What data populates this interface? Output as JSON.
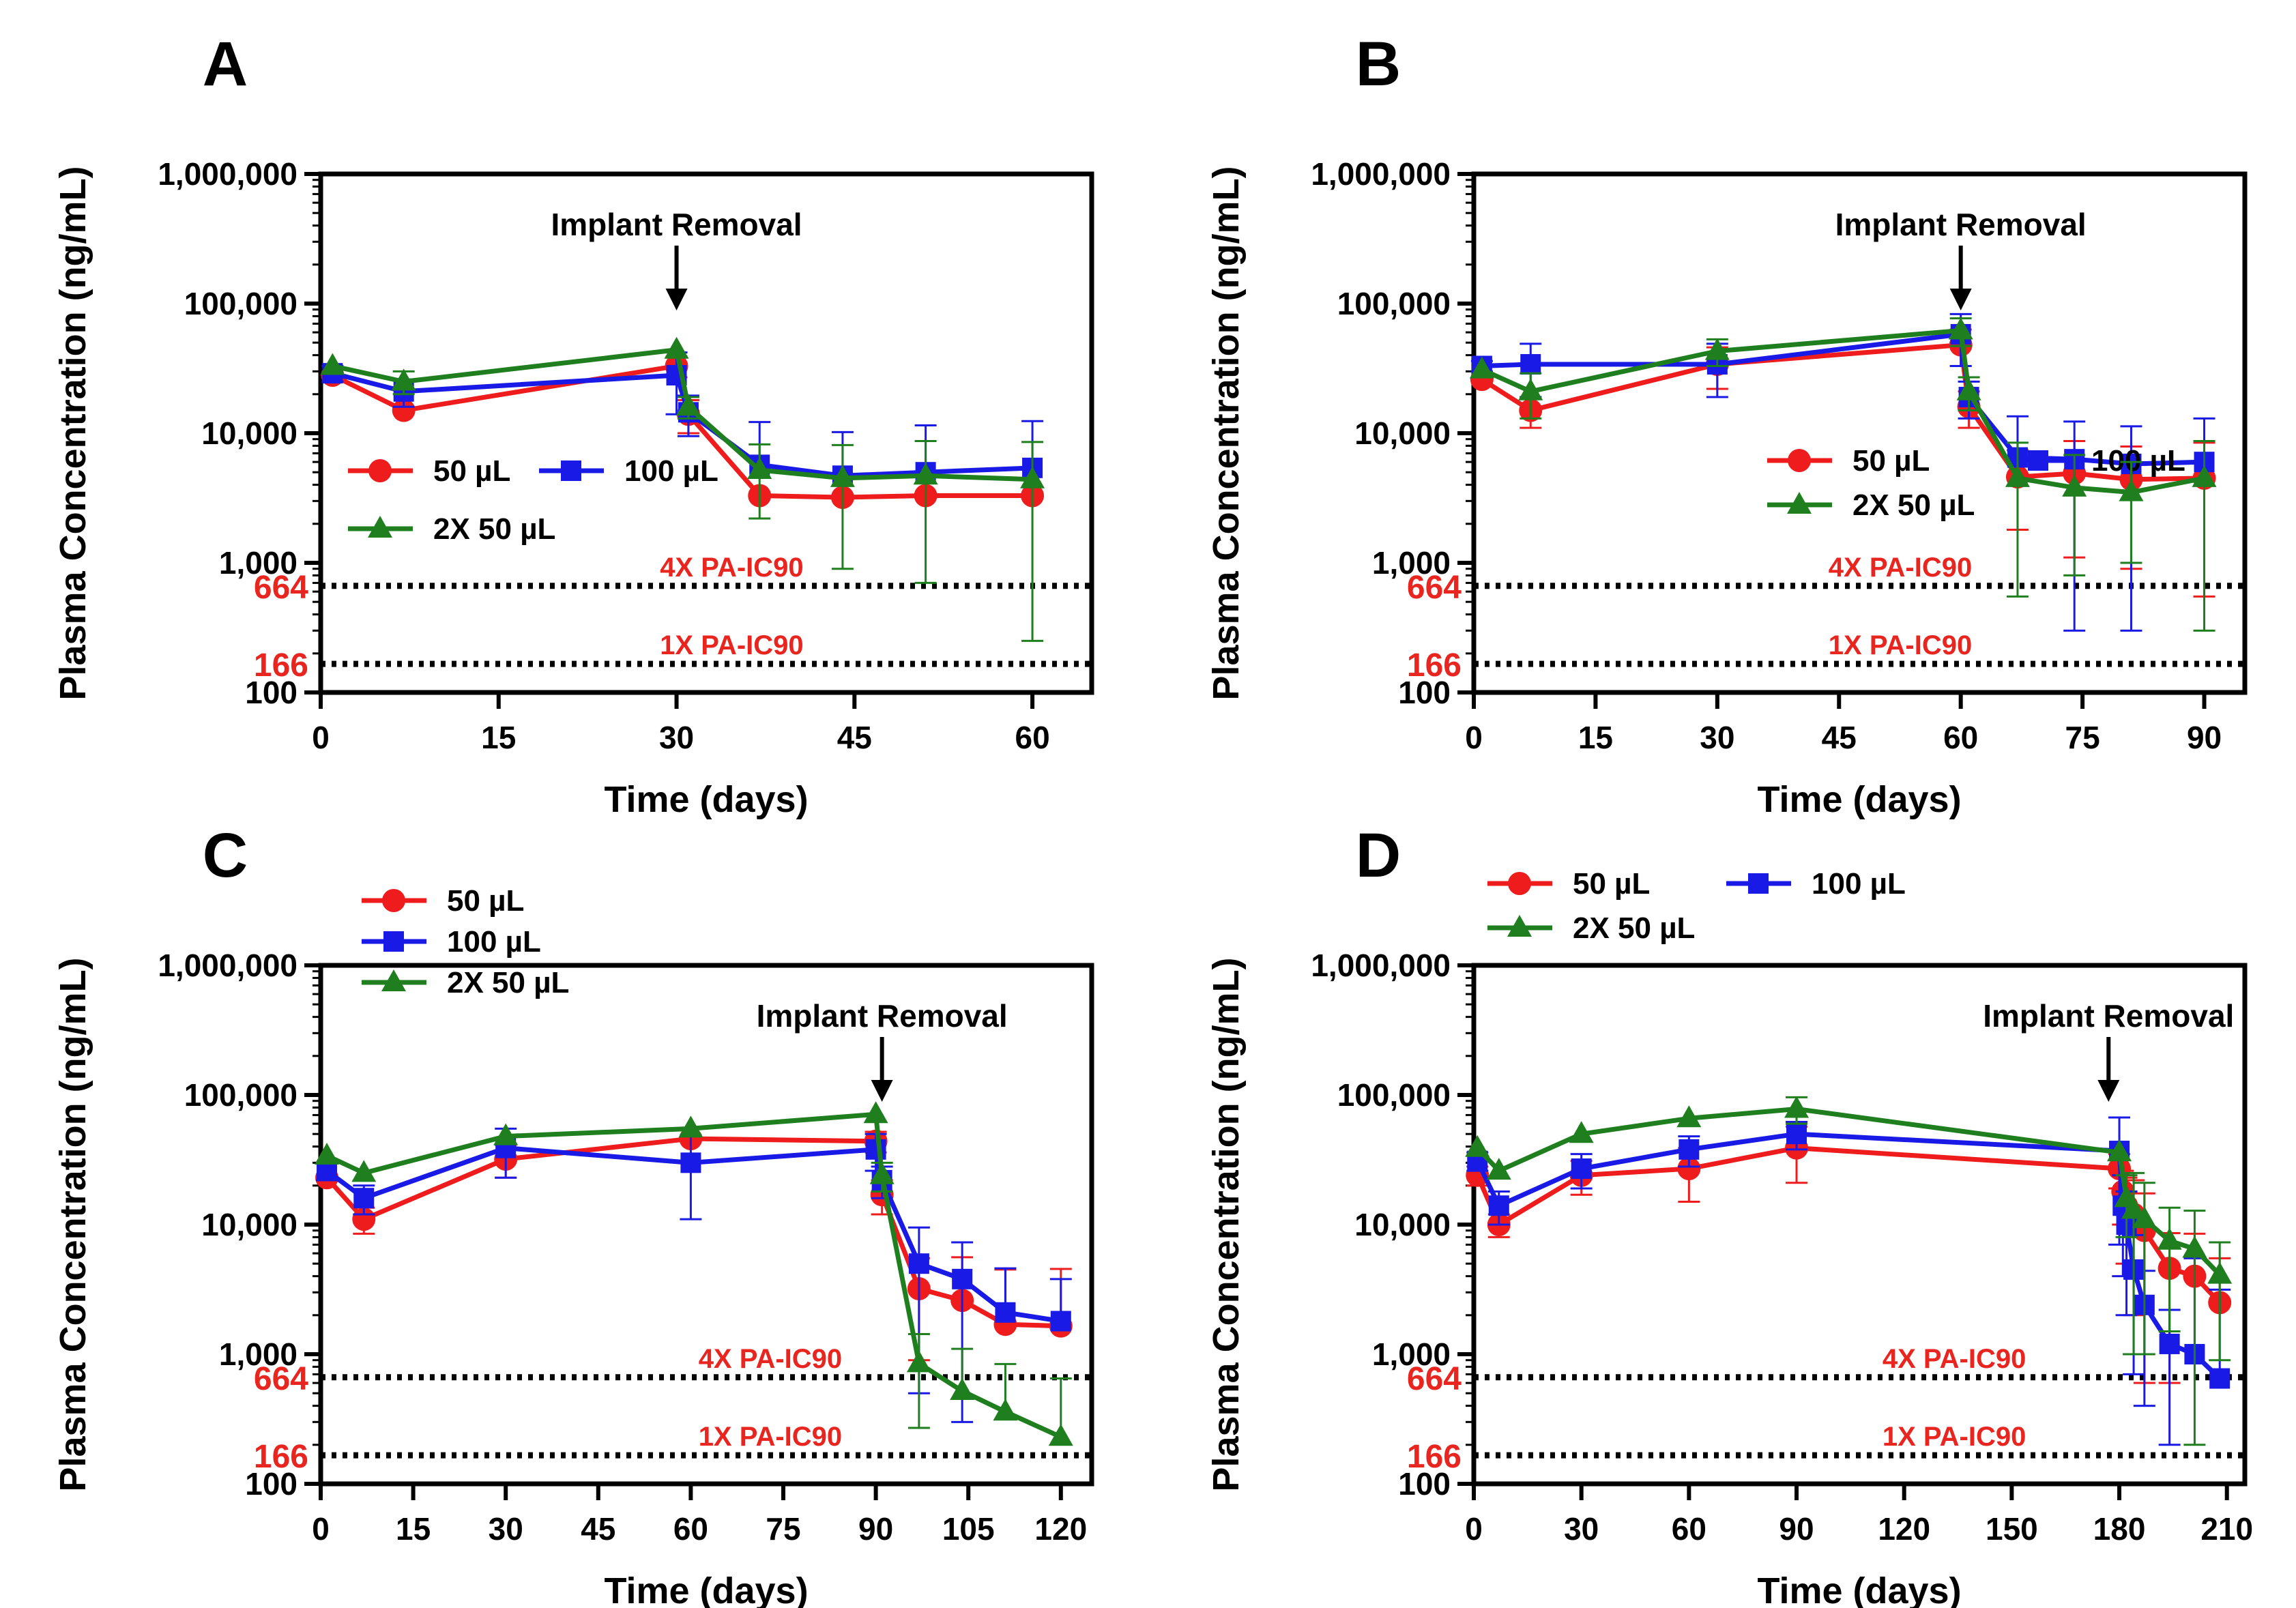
{
  "figure": {
    "series_styles": [
      {
        "name": "50 µL",
        "color": "#ee1c1c",
        "marker": "circle"
      },
      {
        "name": "100 µL",
        "color": "#1a1ae6",
        "marker": "square"
      },
      {
        "name": "2X 50 µL",
        "color": "#1f7f1f",
        "marker": "triangle"
      }
    ],
    "reference_color": "#e8251f"
  },
  "chart_data": [
    {
      "type": "line",
      "panel_label": "A",
      "xlabel": "Time (days)",
      "ylabel": "Plasma Concentration (ng/mL)",
      "yscale": "log",
      "xlim": [
        0,
        65
      ],
      "ylim": [
        100,
        1000000
      ],
      "xticks": [
        0,
        15,
        30,
        45,
        60
      ],
      "yticks": [
        100,
        1000,
        10000,
        100000,
        1000000
      ],
      "ytick_labels": [
        "100",
        "1,000",
        "10,000",
        "100,000",
        "1,000,000"
      ],
      "annotation": {
        "text": "Implant Removal",
        "x": 30
      },
      "reference_lines": [
        {
          "y": 664,
          "value_label": "664",
          "label": "4X PA-IC90"
        },
        {
          "y": 166,
          "value_label": "166",
          "label": "1X PA-IC90"
        }
      ],
      "legend": {
        "placement": "mid-left",
        "layout": "two-row"
      },
      "series": [
        {
          "name": "50 µL",
          "color": "#ee1c1c",
          "marker": "circle",
          "x": [
            1,
            7,
            30,
            31,
            37,
            44,
            51,
            60
          ],
          "y": [
            28000,
            15000,
            33000,
            14000,
            3300,
            3200,
            3300,
            3300
          ],
          "err": [
            null,
            null,
            6000,
            4000,
            null,
            null,
            null,
            null
          ]
        },
        {
          "name": "100 µL",
          "color": "#1a1ae6",
          "marker": "square",
          "x": [
            1,
            7,
            30,
            31,
            37,
            44,
            51,
            60
          ],
          "y": [
            29000,
            21000,
            28000,
            14500,
            5700,
            4700,
            5000,
            5400
          ],
          "err": [
            4000,
            5000,
            14000,
            5000,
            6500,
            5500,
            6500,
            7000
          ]
        },
        {
          "name": "2X 50 µL",
          "color": "#1f7f1f",
          "marker": "triangle",
          "x": [
            1,
            7,
            30,
            31,
            37,
            44,
            51,
            60
          ],
          "y": [
            33000,
            25000,
            44000,
            16000,
            5200,
            4500,
            4700,
            4400
          ],
          "err": [
            null,
            5000,
            null,
            3000,
            3000,
            3600,
            4000,
            4150
          ]
        }
      ]
    },
    {
      "type": "line",
      "panel_label": "B",
      "xlabel": "Time (days)",
      "ylabel": "Plasma Concentration (ng/mL)",
      "yscale": "log",
      "xlim": [
        0,
        95
      ],
      "ylim": [
        100,
        1000000
      ],
      "xticks": [
        0,
        15,
        30,
        45,
        60,
        75,
        90
      ],
      "yticks": [
        100,
        1000,
        10000,
        100000,
        1000000
      ],
      "ytick_labels": [
        "100",
        "1,000",
        "10,000",
        "100,000",
        "1,000,000"
      ],
      "annotation": {
        "text": "Implant Removal",
        "x": 60
      },
      "reference_lines": [
        {
          "y": 664,
          "value_label": "664",
          "label": "4X PA-IC90"
        },
        {
          "y": 166,
          "value_label": "166",
          "label": "1X PA-IC90"
        }
      ],
      "legend": {
        "placement": "mid-center",
        "layout": "two-row"
      },
      "series": [
        {
          "name": "50 µL",
          "color": "#ee1c1c",
          "marker": "circle",
          "x": [
            1,
            7,
            30,
            60,
            61,
            67,
            74,
            81,
            90
          ],
          "y": [
            26000,
            15000,
            34000,
            48000,
            16000,
            4600,
            4900,
            4400,
            4500
          ],
          "err": [
            null,
            4000,
            12000,
            15000,
            5000,
            2800,
            3800,
            3500,
            3950
          ]
        },
        {
          "name": "100 µL",
          "color": "#1a1ae6",
          "marker": "square",
          "x": [
            1,
            7,
            30,
            60,
            61,
            67,
            74,
            81,
            90
          ],
          "y": [
            33000,
            34000,
            34000,
            58000,
            19000,
            6500,
            6300,
            5800,
            6000
          ],
          "err": [
            3000,
            15000,
            15000,
            25000,
            6000,
            7000,
            6000,
            5500,
            7000
          ]
        },
        {
          "name": "2X 50 µL",
          "color": "#1f7f1f",
          "marker": "triangle",
          "x": [
            1,
            7,
            30,
            60,
            61,
            67,
            74,
            81,
            90
          ],
          "y": [
            31000,
            21000,
            43000,
            62000,
            21000,
            4500,
            3800,
            3500,
            4500
          ],
          "err": [
            null,
            8000,
            10000,
            15000,
            6000,
            3950,
            3000,
            2500,
            4200
          ]
        }
      ]
    },
    {
      "type": "line",
      "panel_label": "C",
      "xlabel": "Time (days)",
      "ylabel": "Plasma Concentration (ng/mL)",
      "yscale": "log",
      "xlim": [
        0,
        125
      ],
      "ylim": [
        100,
        1000000
      ],
      "xticks": [
        0,
        15,
        30,
        45,
        60,
        75,
        90,
        105,
        120
      ],
      "yticks": [
        100,
        1000,
        10000,
        100000,
        1000000
      ],
      "ytick_labels": [
        "100",
        "1,000",
        "10,000",
        "100,000",
        "1,000,000"
      ],
      "annotation": {
        "text": "Implant Removal",
        "x": 91
      },
      "reference_lines": [
        {
          "y": 664,
          "value_label": "664",
          "label": "4X PA-IC90"
        },
        {
          "y": 166,
          "value_label": "166",
          "label": "1X PA-IC90"
        }
      ],
      "legend": {
        "placement": "top-left",
        "layout": "stacked"
      },
      "series": [
        {
          "name": "50 µL",
          "color": "#ee1c1c",
          "marker": "circle",
          "x": [
            1,
            7,
            30,
            60,
            90,
            91,
            97,
            104,
            111,
            120
          ],
          "y": [
            23000,
            11000,
            32000,
            46000,
            44000,
            17000,
            3200,
            2600,
            1700,
            1650
          ],
          "err": [
            null,
            2500,
            9000,
            null,
            8000,
            5000,
            2300,
            3000,
            2800,
            2900
          ]
        },
        {
          "name": "100 µL",
          "color": "#1a1ae6",
          "marker": "square",
          "x": [
            1,
            7,
            30,
            60,
            90,
            91,
            97,
            104,
            111,
            120
          ],
          "y": [
            26000,
            16000,
            39000,
            30000,
            38000,
            22000,
            5000,
            3800,
            2100,
            1800
          ],
          "err": [
            4000,
            4000,
            16000,
            19000,
            12000,
            6000,
            4500,
            3500,
            2500,
            2000
          ]
        },
        {
          "name": "2X 50 µL",
          "color": "#1f7f1f",
          "marker": "triangle",
          "x": [
            1,
            7,
            30,
            60,
            90,
            91,
            97,
            104,
            111,
            120
          ],
          "y": [
            34000,
            25000,
            48000,
            55000,
            71000,
            24000,
            850,
            520,
            360,
            230
          ],
          "err": [
            null,
            null,
            null,
            null,
            null,
            6000,
            580,
            580,
            480,
            420
          ]
        }
      ]
    },
    {
      "type": "line",
      "panel_label": "D",
      "xlabel": "Time (days)",
      "ylabel": "Plasma Concentration (ng/mL)",
      "yscale": "log",
      "xlim": [
        0,
        215
      ],
      "ylim": [
        100,
        1000000
      ],
      "xticks": [
        0,
        30,
        60,
        90,
        120,
        150,
        180,
        210
      ],
      "yticks": [
        100,
        1000,
        10000,
        100000,
        1000000
      ],
      "ytick_labels": [
        "100",
        "1,000",
        "10,000",
        "100,000",
        "1,000,000"
      ],
      "annotation": {
        "text": "Implant Removal",
        "x": 177
      },
      "reference_lines": [
        {
          "y": 664,
          "value_label": "664",
          "label": "4X PA-IC90"
        },
        {
          "y": 166,
          "value_label": "166",
          "label": "1X PA-IC90"
        }
      ],
      "legend": {
        "placement": "top-left",
        "layout": "two-row"
      },
      "series": [
        {
          "name": "50 µL",
          "color": "#ee1c1c",
          "marker": "circle",
          "x": [
            1,
            7,
            30,
            60,
            90,
            180,
            181,
            182,
            184,
            187,
            194,
            201,
            208
          ],
          "y": [
            24000,
            10000,
            24000,
            27000,
            39000,
            27000,
            18000,
            14000,
            12000,
            9000,
            4600,
            4000,
            2500
          ],
          "err": [
            4000,
            2000,
            7000,
            12000,
            18000,
            8000,
            8000,
            9000,
            10000,
            8400,
            4000,
            4500,
            3000
          ]
        },
        {
          "name": "100 µL",
          "color": "#1a1ae6",
          "marker": "square",
          "x": [
            1,
            7,
            30,
            60,
            90,
            180,
            181,
            182,
            184,
            187,
            194,
            201,
            208
          ],
          "y": [
            31000,
            14000,
            27000,
            38000,
            50000,
            37000,
            14000,
            10000,
            4500,
            2400,
            1200,
            1000,
            650
          ],
          "err": [
            5000,
            4000,
            8000,
            10000,
            12000,
            30000,
            10000,
            8000,
            3800,
            2000,
            1000,
            4500,
            2500
          ]
        },
        {
          "name": "2X 50 µL",
          "color": "#1f7f1f",
          "marker": "triangle",
          "x": [
            1,
            7,
            30,
            60,
            90,
            180,
            182,
            184,
            187,
            194,
            201,
            208
          ],
          "y": [
            39000,
            26000,
            50000,
            66000,
            78000,
            36000,
            16000,
            13000,
            11000,
            7500,
            6500,
            4100
          ],
          "err": [
            null,
            null,
            null,
            null,
            18000,
            null,
            8000,
            12000,
            10000,
            6000,
            6300,
            3200
          ]
        }
      ]
    }
  ]
}
